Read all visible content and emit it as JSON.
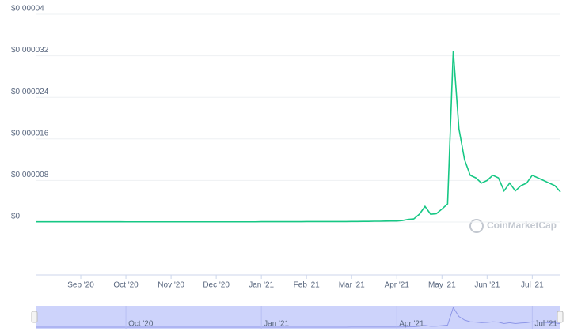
{
  "chart_data": {
    "type": "line",
    "categories": [
      null,
      null,
      null,
      null,
      null,
      null,
      null,
      null,
      "Sep '20",
      null,
      null,
      null,
      null,
      null,
      null,
      null,
      "Oct '20",
      null,
      null,
      null,
      null,
      null,
      null,
      null,
      "Nov '20",
      null,
      null,
      null,
      null,
      null,
      null,
      null,
      "Dec '20",
      null,
      null,
      null,
      null,
      null,
      null,
      null,
      "Jan '21",
      null,
      null,
      null,
      null,
      null,
      null,
      null,
      "Feb '21",
      null,
      null,
      null,
      null,
      null,
      null,
      null,
      "Mar '21",
      null,
      null,
      null,
      null,
      null,
      null,
      null,
      "Apr '21",
      null,
      null,
      null,
      null,
      null,
      null,
      null,
      "May '21",
      null,
      null,
      null,
      null,
      null,
      null,
      null,
      "Jun '21",
      null,
      null,
      null,
      null,
      null,
      null,
      null,
      "Jul '21",
      null,
      null,
      null,
      null,
      null
    ],
    "values": [
      5e-08,
      5e-08,
      5e-08,
      5e-08,
      5e-08,
      5e-08,
      5e-08,
      5e-08,
      5e-08,
      5e-08,
      5e-08,
      5e-08,
      5e-08,
      5e-08,
      5e-08,
      5e-08,
      4e-08,
      4e-08,
      4e-08,
      4e-08,
      4e-08,
      4e-08,
      4e-08,
      4e-08,
      4e-08,
      4e-08,
      4e-08,
      4e-08,
      4e-08,
      4e-08,
      4e-08,
      4e-08,
      4e-08,
      4e-08,
      4e-08,
      4e-08,
      4e-08,
      4e-08,
      4e-08,
      4e-08,
      6e-08,
      6e-08,
      6e-08,
      6e-08,
      6e-08,
      6e-08,
      6e-08,
      6e-08,
      8e-08,
      8e-08,
      8e-08,
      8e-08,
      8e-08,
      8e-08,
      8e-08,
      8e-08,
      1e-07,
      1e-07,
      1.2e-07,
      1.2e-07,
      1.5e-07,
      1.5e-07,
      1.8e-07,
      2e-07,
      2e-07,
      3e-07,
      5e-07,
      6e-07,
      1.5e-06,
      3e-06,
      1.5e-06,
      1.6e-06,
      2.5e-06,
      3.5e-06,
      3.3e-05,
      1.8e-05,
      1.2e-05,
      9e-06,
      8.5e-06,
      7.5e-06,
      8e-06,
      9e-06,
      8.5e-06,
      6e-06,
      7.5e-06,
      6e-06,
      7e-06,
      7.5e-06,
      9e-06,
      8.5e-06,
      8e-06,
      7.5e-06,
      7e-06,
      5.8e-06
    ],
    "color": "#16c784",
    "ylim": [
      0,
      4e-05
    ],
    "yticks": [
      {
        "value": 0,
        "label": "$0"
      },
      {
        "value": 8e-06,
        "label": "$0.000008"
      },
      {
        "value": 1.6e-05,
        "label": "$0.000016"
      },
      {
        "value": 2.4e-05,
        "label": "$0.000024"
      },
      {
        "value": 3.2e-05,
        "label": "$0.000032"
      },
      {
        "value": 4e-05,
        "label": "$0.00004"
      }
    ],
    "grid": true,
    "watermark": "CoinMarketCap",
    "navigator_labels": [
      "Oct '20",
      "Jan '21",
      "Apr '21",
      "Jul '21"
    ]
  }
}
